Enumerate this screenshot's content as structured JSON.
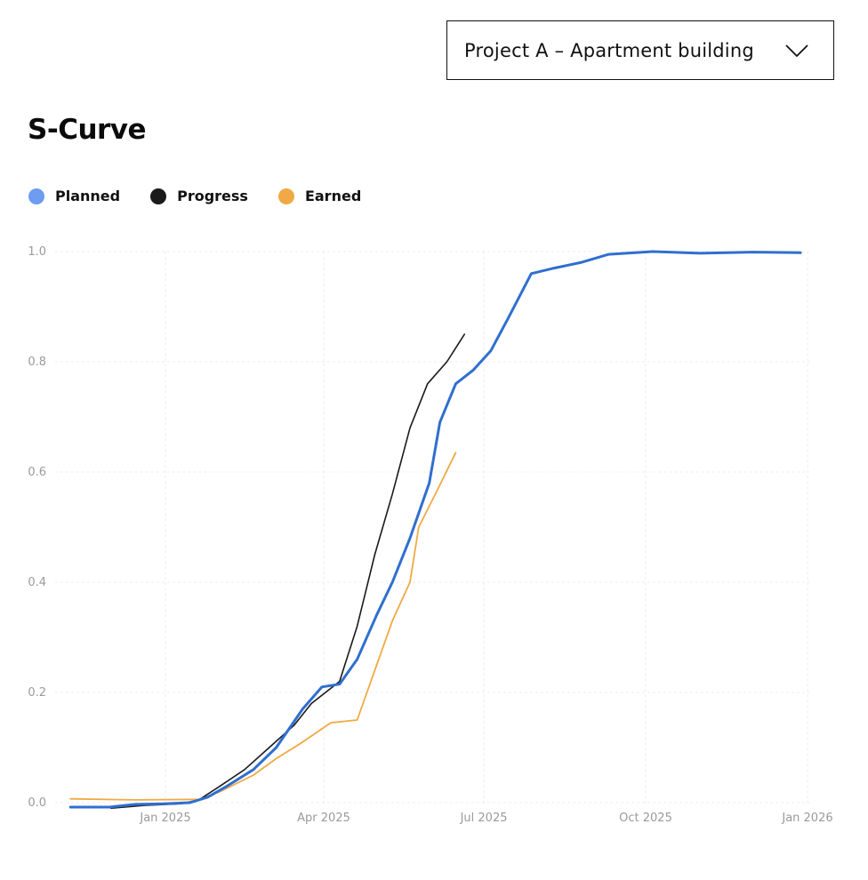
{
  "project_select": {
    "value": "Project A – Apartment building",
    "icon": "chevron-down-icon"
  },
  "title": "S-Curve",
  "legend": [
    {
      "label": "Planned",
      "color": "#6d9cf0"
    },
    {
      "label": "Progress",
      "color": "#1a1a1a"
    },
    {
      "label": "Earned",
      "color": "#f0a944"
    }
  ],
  "chart_data": {
    "type": "line",
    "grid": true,
    "ylim": [
      0,
      1
    ],
    "xlim": [
      "2024-11-01",
      "2026-01-01"
    ],
    "y_ticks": [
      "0.0",
      "0.2",
      "0.4",
      "0.6",
      "0.8",
      "1.0"
    ],
    "x_ticks": [
      {
        "label": "Jan 2025",
        "date": "2025-01-01"
      },
      {
        "label": "Apr 2025",
        "date": "2025-04-01"
      },
      {
        "label": "Jul 2025",
        "date": "2025-07-01"
      },
      {
        "label": "Oct 2025",
        "date": "2025-10-01"
      },
      {
        "label": "Jan 2026",
        "date": "2026-01-01"
      }
    ],
    "series": [
      {
        "name": "Planned",
        "color": "#2f6fcf",
        "points": [
          [
            "2024-11-08",
            -0.008
          ],
          [
            "2024-11-30",
            -0.008
          ],
          [
            "2024-12-15",
            -0.003
          ],
          [
            "2024-12-31",
            -0.002
          ],
          [
            "2025-01-15",
            0.0
          ],
          [
            "2025-01-25",
            0.01
          ],
          [
            "2025-02-05",
            0.03
          ],
          [
            "2025-02-20",
            0.06
          ],
          [
            "2025-03-05",
            0.1
          ],
          [
            "2025-03-20",
            0.17
          ],
          [
            "2025-03-31",
            0.21
          ],
          [
            "2025-04-10",
            0.215
          ],
          [
            "2025-04-20",
            0.26
          ],
          [
            "2025-05-01",
            0.34
          ],
          [
            "2025-05-10",
            0.4
          ],
          [
            "2025-05-20",
            0.48
          ],
          [
            "2025-05-31",
            0.58
          ],
          [
            "2025-06-06",
            0.69
          ],
          [
            "2025-06-15",
            0.76
          ],
          [
            "2025-06-25",
            0.785
          ],
          [
            "2025-07-05",
            0.82
          ],
          [
            "2025-07-15",
            0.88
          ],
          [
            "2025-07-28",
            0.96
          ],
          [
            "2025-08-10",
            0.97
          ],
          [
            "2025-08-25",
            0.98
          ],
          [
            "2025-09-10",
            0.995
          ],
          [
            "2025-10-05",
            1.0
          ],
          [
            "2025-11-01",
            0.997
          ],
          [
            "2025-12-01",
            0.999
          ],
          [
            "2025-12-28",
            0.998
          ]
        ]
      },
      {
        "name": "Progress",
        "color": "#1a1a1a",
        "points": [
          [
            "2024-12-01",
            -0.01
          ],
          [
            "2024-12-20",
            -0.005
          ],
          [
            "2025-01-10",
            -0.002
          ],
          [
            "2025-01-20",
            0.005
          ],
          [
            "2025-02-01",
            0.03
          ],
          [
            "2025-02-15",
            0.06
          ],
          [
            "2025-03-01",
            0.1
          ],
          [
            "2025-03-15",
            0.14
          ],
          [
            "2025-03-25",
            0.18
          ],
          [
            "2025-04-10",
            0.22
          ],
          [
            "2025-04-20",
            0.32
          ],
          [
            "2025-04-30",
            0.45
          ],
          [
            "2025-05-10",
            0.56
          ],
          [
            "2025-05-20",
            0.68
          ],
          [
            "2025-05-30",
            0.76
          ],
          [
            "2025-06-10",
            0.8
          ],
          [
            "2025-06-20",
            0.85
          ]
        ]
      },
      {
        "name": "Earned",
        "color": "#f0a944",
        "points": [
          [
            "2024-11-08",
            0.007
          ],
          [
            "2024-12-15",
            0.005
          ],
          [
            "2025-01-20",
            0.006
          ],
          [
            "2025-02-01",
            0.02
          ],
          [
            "2025-02-20",
            0.05
          ],
          [
            "2025-03-05",
            0.08
          ],
          [
            "2025-03-20",
            0.11
          ],
          [
            "2025-04-05",
            0.145
          ],
          [
            "2025-04-20",
            0.15
          ],
          [
            "2025-04-30",
            0.24
          ],
          [
            "2025-05-10",
            0.33
          ],
          [
            "2025-05-20",
            0.4
          ],
          [
            "2025-05-25",
            0.5
          ],
          [
            "2025-06-05",
            0.57
          ],
          [
            "2025-06-15",
            0.635
          ]
        ]
      }
    ]
  }
}
